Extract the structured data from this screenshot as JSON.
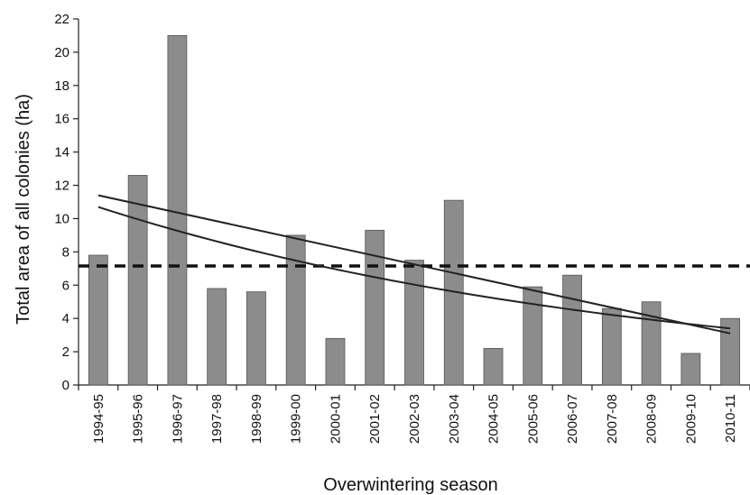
{
  "chart_data": {
    "type": "bar",
    "title": "",
    "xlabel": "Overwintering season",
    "ylabel": "Total area of all colonies (ha)",
    "ylim": [
      0,
      22
    ],
    "yticks": [
      0,
      2,
      4,
      6,
      8,
      10,
      12,
      14,
      16,
      18,
      20,
      22
    ],
    "grid": false,
    "categories": [
      "1994-95",
      "1995-96",
      "1996-97",
      "1997-98",
      "1998-99",
      "1999-00",
      "2000-01",
      "2001-02",
      "2002-03",
      "2003-04",
      "2004-05",
      "2005-06",
      "2006-07",
      "2007-08",
      "2008-09",
      "2009-10",
      "2010-11"
    ],
    "values": [
      7.8,
      12.6,
      21.0,
      5.8,
      5.6,
      9.0,
      2.8,
      9.3,
      7.5,
      11.1,
      2.2,
      5.9,
      6.6,
      4.6,
      5.0,
      1.9,
      4.0
    ],
    "bar_color": "#8c8c8c",
    "reference_line": {
      "value": 7.15,
      "style": "dashed"
    },
    "trend_lines": [
      {
        "kind": "linear",
        "start": 11.4,
        "end": 3.1
      },
      {
        "kind": "exponential",
        "start": 10.7,
        "end": 3.4
      }
    ]
  }
}
